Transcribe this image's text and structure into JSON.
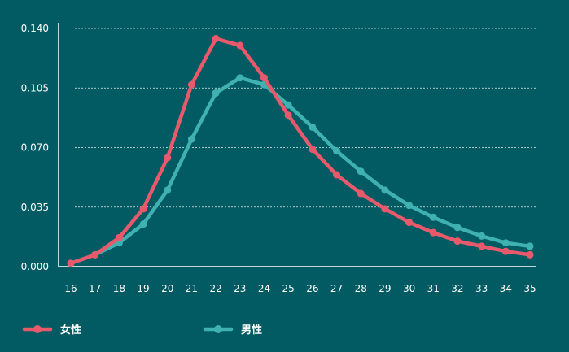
{
  "chart_data": {
    "type": "line",
    "title": "",
    "xlabel": "",
    "ylabel": "",
    "x": [
      16,
      17,
      18,
      19,
      20,
      21,
      22,
      23,
      24,
      25,
      26,
      27,
      28,
      29,
      30,
      31,
      32,
      33,
      34,
      35
    ],
    "x_tick_labels": [
      "16",
      "17",
      "18",
      "19",
      "20",
      "21",
      "22",
      "23",
      "24",
      "25",
      "26",
      "27",
      "28",
      "29",
      "30",
      "31",
      "32",
      "33",
      "34",
      "35"
    ],
    "y_tick_labels": [
      "0.000",
      "0.035",
      "0.070",
      "0.105",
      "0.140"
    ],
    "y_ticks": [
      0,
      0.035,
      0.07,
      0.105,
      0.14
    ],
    "ylim": [
      0,
      0.14
    ],
    "grid": "horizontal-dashed",
    "legend_position": "bottom-left",
    "series": [
      {
        "name": "女性",
        "color": "#e85a6b",
        "values": [
          0.002,
          0.007,
          0.017,
          0.034,
          0.064,
          0.107,
          0.134,
          0.13,
          0.111,
          0.089,
          0.069,
          0.054,
          0.043,
          0.034,
          0.026,
          0.02,
          0.015,
          0.012,
          0.009,
          0.007
        ]
      },
      {
        "name": "男性",
        "color": "#3fb1b0",
        "values": [
          0.002,
          0.007,
          0.014,
          0.025,
          0.045,
          0.075,
          0.102,
          0.111,
          0.107,
          0.095,
          0.082,
          0.068,
          0.056,
          0.045,
          0.036,
          0.029,
          0.023,
          0.018,
          0.014,
          0.012
        ]
      }
    ]
  }
}
